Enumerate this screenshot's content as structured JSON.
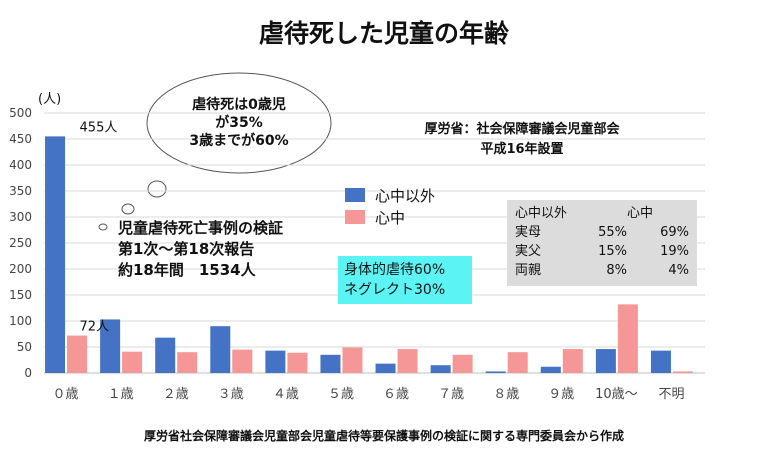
{
  "title": "虐待死した児童の年齢",
  "source": "厚労省社会保障審議会児童部会児童虐待等要保護事例の検証に関する専門委員会から作成",
  "organization": {
    "line1": "厚労省：社会保障審議会児童部会",
    "line2": "平成16年設置"
  },
  "callout": {
    "line1": "虐待死は0歳児",
    "line2": "が35%",
    "line3": "3歳までが60%"
  },
  "review_note": {
    "line1": "児童虐待死亡事例の検証",
    "line2": "第1次～第18次報告",
    "line3": "約18年間　1534人"
  },
  "abuse_types": {
    "line1": "身体的虐待60%",
    "line2": "ネグレクト30%"
  },
  "perpetrators": {
    "header": [
      "心中以外",
      "",
      "心中"
    ],
    "rows": [
      [
        "実母",
        "55%",
        "69%"
      ],
      [
        "実父",
        "15%",
        "19%"
      ],
      [
        "両親",
        "8%",
        "4%"
      ]
    ]
  },
  "colors": {
    "series1": "#4472c4",
    "series2": "#f59697",
    "abuse_box": "#5cf3f5",
    "perp_box": "#dcdcdc",
    "grid": "#d9d9d9"
  },
  "chart_data": {
    "type": "bar",
    "title": "虐待死した児童の年齢",
    "ylabel": "(人)",
    "xlabel": "",
    "ylim": [
      0,
      500
    ],
    "yticks": [
      0,
      50,
      100,
      150,
      200,
      250,
      300,
      350,
      400,
      450,
      500
    ],
    "grid": true,
    "legend_position": "center",
    "categories": [
      "０歳",
      "１歳",
      "２歳",
      "３歳",
      "４歳",
      "５歳",
      "６歳",
      "７歳",
      "８歳",
      "９歳",
      "10歳～",
      "不明"
    ],
    "series": [
      {
        "name": "心中以外",
        "values": [
          455,
          103,
          68,
          90,
          43,
          35,
          18,
          15,
          3,
          12,
          46,
          43
        ]
      },
      {
        "name": "心中",
        "values": [
          72,
          41,
          40,
          45,
          39,
          49,
          46,
          35,
          40,
          46,
          132,
          3
        ]
      }
    ],
    "annotations": [
      {
        "text": "455人",
        "category": "０歳",
        "series": "心中以外"
      },
      {
        "text": "72人",
        "category": "０歳",
        "series": "心中"
      }
    ]
  }
}
